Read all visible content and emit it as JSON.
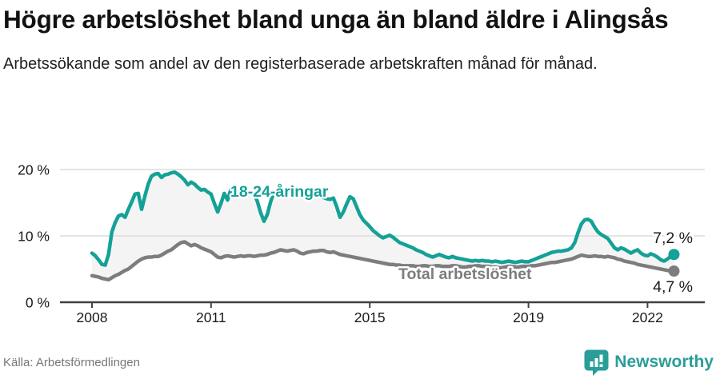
{
  "header": {
    "title": "Högre arbetslöshet bland unga än bland äldre i Alingsås",
    "subtitle": "Arbetssökande som andel av den registerbaserade arbetskraften månad för månad."
  },
  "chart_data": {
    "type": "line",
    "x_start": {
      "year": 2008,
      "month": 1
    },
    "x_end": {
      "year": 2022,
      "month": 9
    },
    "x_ticks": [
      2008,
      2011,
      2015,
      2019,
      2022
    ],
    "y_ticks": [
      {
        "value": 0,
        "label": "0 %"
      },
      {
        "value": 10,
        "label": "10 %"
      },
      {
        "value": 20,
        "label": "20 %"
      }
    ],
    "ylim": [
      0,
      22
    ],
    "unit": "%",
    "grid": true,
    "band_fill": "#f4f4f4",
    "series": [
      {
        "name": "18-24-åringar",
        "color": "#14a197",
        "end_label": "7,2 %",
        "end_value": 7.2,
        "values": [
          7.4,
          7.0,
          6.4,
          5.7,
          5.6,
          7.2,
          10.6,
          12.0,
          13.0,
          13.2,
          12.8,
          14.0,
          15.1,
          16.3,
          16.4,
          14.0,
          16.0,
          17.8,
          19.0,
          19.3,
          19.4,
          18.8,
          19.2,
          19.3,
          19.5,
          19.6,
          19.3,
          18.9,
          18.4,
          17.7,
          18.1,
          17.8,
          17.3,
          16.9,
          17.0,
          16.6,
          16.3,
          14.9,
          13.6,
          14.9,
          16.4,
          15.4,
          17.0,
          16.8,
          16.6,
          16.7,
          16.6,
          16.5,
          16.6,
          16.4,
          15.2,
          13.5,
          12.2,
          13.2,
          15.1,
          16.6,
          16.8,
          16.7,
          16.5,
          16.4,
          16.4,
          16.3,
          16.2,
          16.3,
          16.2,
          16.1,
          16.0,
          16.1,
          16.2,
          16.0,
          15.8,
          15.6,
          15.5,
          15.7,
          14.4,
          12.8,
          13.6,
          14.8,
          15.9,
          15.6,
          14.4,
          13.2,
          12.4,
          11.9,
          11.4,
          10.8,
          10.4,
          10.0,
          9.7,
          9.9,
          10.1,
          9.8,
          9.4,
          9.0,
          8.8,
          8.6,
          8.4,
          8.2,
          7.9,
          7.7,
          7.5,
          7.2,
          7.0,
          6.8,
          7.0,
          7.2,
          7.0,
          6.8,
          6.7,
          6.9,
          6.7,
          6.6,
          6.5,
          6.4,
          6.3,
          6.2,
          6.3,
          6.2,
          6.3,
          6.2,
          6.2,
          6.1,
          6.2,
          6.1,
          6.0,
          6.1,
          6.2,
          6.1,
          6.0,
          6.1,
          6.2,
          6.1,
          6.1,
          6.3,
          6.5,
          6.7,
          6.9,
          7.1,
          7.3,
          7.5,
          7.6,
          7.7,
          7.7,
          7.8,
          7.9,
          8.2,
          9.0,
          10.5,
          11.8,
          12.4,
          12.5,
          12.2,
          11.3,
          10.6,
          10.2,
          9.9,
          9.6,
          8.9,
          8.2,
          7.9,
          8.2,
          8.0,
          7.7,
          7.4,
          7.7,
          7.9,
          7.4,
          7.1,
          7.0,
          7.3,
          7.1,
          6.8,
          6.4,
          6.2,
          6.5,
          6.9,
          7.2
        ]
      },
      {
        "name": "Total arbetslöshet",
        "color": "#7d7d7d",
        "end_label": "4,7 %",
        "end_value": 4.7,
        "values": [
          4.0,
          3.9,
          3.8,
          3.6,
          3.5,
          3.4,
          3.7,
          4.0,
          4.2,
          4.5,
          4.8,
          5.0,
          5.4,
          5.8,
          6.2,
          6.5,
          6.7,
          6.8,
          6.8,
          6.9,
          6.9,
          7.1,
          7.4,
          7.7,
          7.9,
          8.3,
          8.7,
          9.0,
          9.1,
          8.8,
          8.5,
          8.7,
          8.5,
          8.2,
          8.0,
          7.8,
          7.6,
          7.2,
          6.8,
          6.7,
          6.9,
          7.0,
          6.9,
          6.8,
          6.9,
          7.0,
          6.9,
          7.0,
          7.0,
          6.9,
          7.0,
          7.1,
          7.1,
          7.2,
          7.4,
          7.5,
          7.7,
          7.9,
          7.8,
          7.7,
          7.8,
          7.9,
          7.7,
          7.4,
          7.3,
          7.5,
          7.6,
          7.7,
          7.7,
          7.8,
          7.8,
          7.6,
          7.5,
          7.6,
          7.4,
          7.2,
          7.1,
          7.0,
          6.9,
          6.8,
          6.7,
          6.6,
          6.5,
          6.4,
          6.3,
          6.2,
          6.1,
          6.0,
          5.9,
          5.8,
          5.7,
          5.7,
          5.6,
          5.6,
          5.5,
          5.5,
          5.5,
          5.5,
          5.4,
          5.4,
          5.5,
          5.5,
          5.4,
          5.4,
          5.5,
          5.5,
          5.4,
          5.4,
          5.4,
          5.5,
          5.5,
          5.4,
          5.3,
          5.3,
          5.4,
          5.4,
          5.5,
          5.5,
          5.4,
          5.4,
          5.4,
          5.3,
          5.3,
          5.2,
          5.2,
          5.3,
          5.4,
          5.4,
          5.3,
          5.3,
          5.4,
          5.4,
          5.4,
          5.5,
          5.5,
          5.6,
          5.7,
          5.8,
          5.9,
          6.0,
          6.0,
          6.1,
          6.2,
          6.3,
          6.4,
          6.5,
          6.7,
          6.9,
          7.1,
          7.0,
          6.9,
          6.9,
          7.0,
          6.9,
          6.9,
          6.8,
          6.9,
          6.8,
          6.7,
          6.5,
          6.4,
          6.2,
          6.1,
          6.0,
          5.9,
          5.7,
          5.6,
          5.5,
          5.4,
          5.3,
          5.2,
          5.1,
          5.0,
          4.9,
          4.8,
          4.7,
          4.7
        ]
      }
    ]
  },
  "footer": {
    "source": "Källa: Arbetsförmedlingen",
    "brand": "Newsworthy"
  }
}
